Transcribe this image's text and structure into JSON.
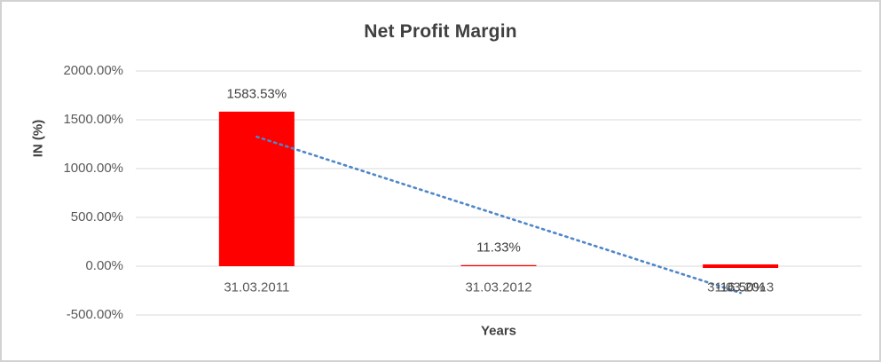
{
  "chart_data": {
    "type": "bar",
    "title": "Net Profit Margin",
    "xlabel": "Years",
    "ylabel": "IN (%)",
    "categories": [
      "31.03.2011",
      "31.03.2012",
      "31.03.2013"
    ],
    "values": [
      1583.53,
      11.33,
      -16.5
    ],
    "data_labels": [
      "1583.53%",
      "11.33%",
      "-16.50%"
    ],
    "ylim": [
      -500,
      2000
    ],
    "ytick_step": 500,
    "ytick_labels": [
      "2000.00%",
      "1500.00%",
      "1000.00%",
      "500.00%",
      "0.00%",
      "-500.00%"
    ],
    "grid": "horizontal",
    "legend_position": "none",
    "bar_color": "#ff0000",
    "gridline_color": "#d9d9d9",
    "trendline": {
      "kind": "linear",
      "style": "dotted",
      "color": "#4e87c8"
    },
    "text_colors": {
      "title": "#404040",
      "axis_titles": "#404040",
      "tick_labels": "#595959",
      "data_labels": "#404040"
    }
  }
}
